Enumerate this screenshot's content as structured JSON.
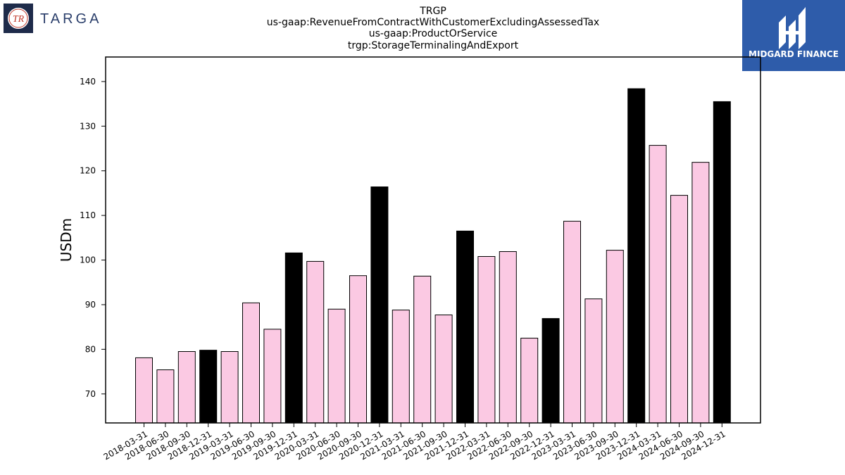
{
  "logos": {
    "left_text": "TARGA",
    "left_monogram": "TR",
    "right_text": "MIDGARD FINANCE"
  },
  "colors": {
    "q4_bar": "#000000",
    "other_bar": "#fbc9e3",
    "bar_edge": "#000000",
    "logo_right_bg": "#2e5caa",
    "logo_left_text": "#2b3f6b"
  },
  "chart_data": {
    "type": "bar",
    "title_lines": [
      "TRGP",
      "us-gaap:RevenueFromContractWithCustomerExcludingAssessedTax",
      "us-gaap:ProductOrService",
      "trgp:StorageTerminalingAndExport"
    ],
    "xlabel": "",
    "ylabel": "USDm",
    "ylim": [
      63.5,
      145.5
    ],
    "yticks": [
      70,
      80,
      90,
      100,
      110,
      120,
      130,
      140
    ],
    "grid": false,
    "categories": [
      "2018-03-31",
      "2018-06-30",
      "2018-09-30",
      "2018-12-31",
      "2019-03-31",
      "2019-06-30",
      "2019-09-30",
      "2019-12-31",
      "2020-03-31",
      "2020-06-30",
      "2020-09-30",
      "2020-12-31",
      "2021-03-31",
      "2021-06-30",
      "2021-09-30",
      "2021-12-31",
      "2022-03-31",
      "2022-06-30",
      "2022-09-30",
      "2022-12-31",
      "2023-03-31",
      "2023-06-30",
      "2023-09-30",
      "2023-12-31",
      "2024-03-31",
      "2024-06-30",
      "2024-09-30",
      "2024-12-31"
    ],
    "values": [
      78.1,
      75.4,
      79.5,
      79.8,
      79.5,
      90.4,
      84.5,
      101.6,
      99.7,
      89.0,
      96.5,
      116.4,
      88.8,
      96.4,
      87.7,
      106.5,
      100.8,
      101.9,
      82.5,
      86.9,
      108.7,
      91.3,
      102.2,
      138.4,
      125.7,
      114.5,
      121.9,
      135.5
    ],
    "highlight_rule": "fiscal year-end (12-31) bars shown in black"
  }
}
